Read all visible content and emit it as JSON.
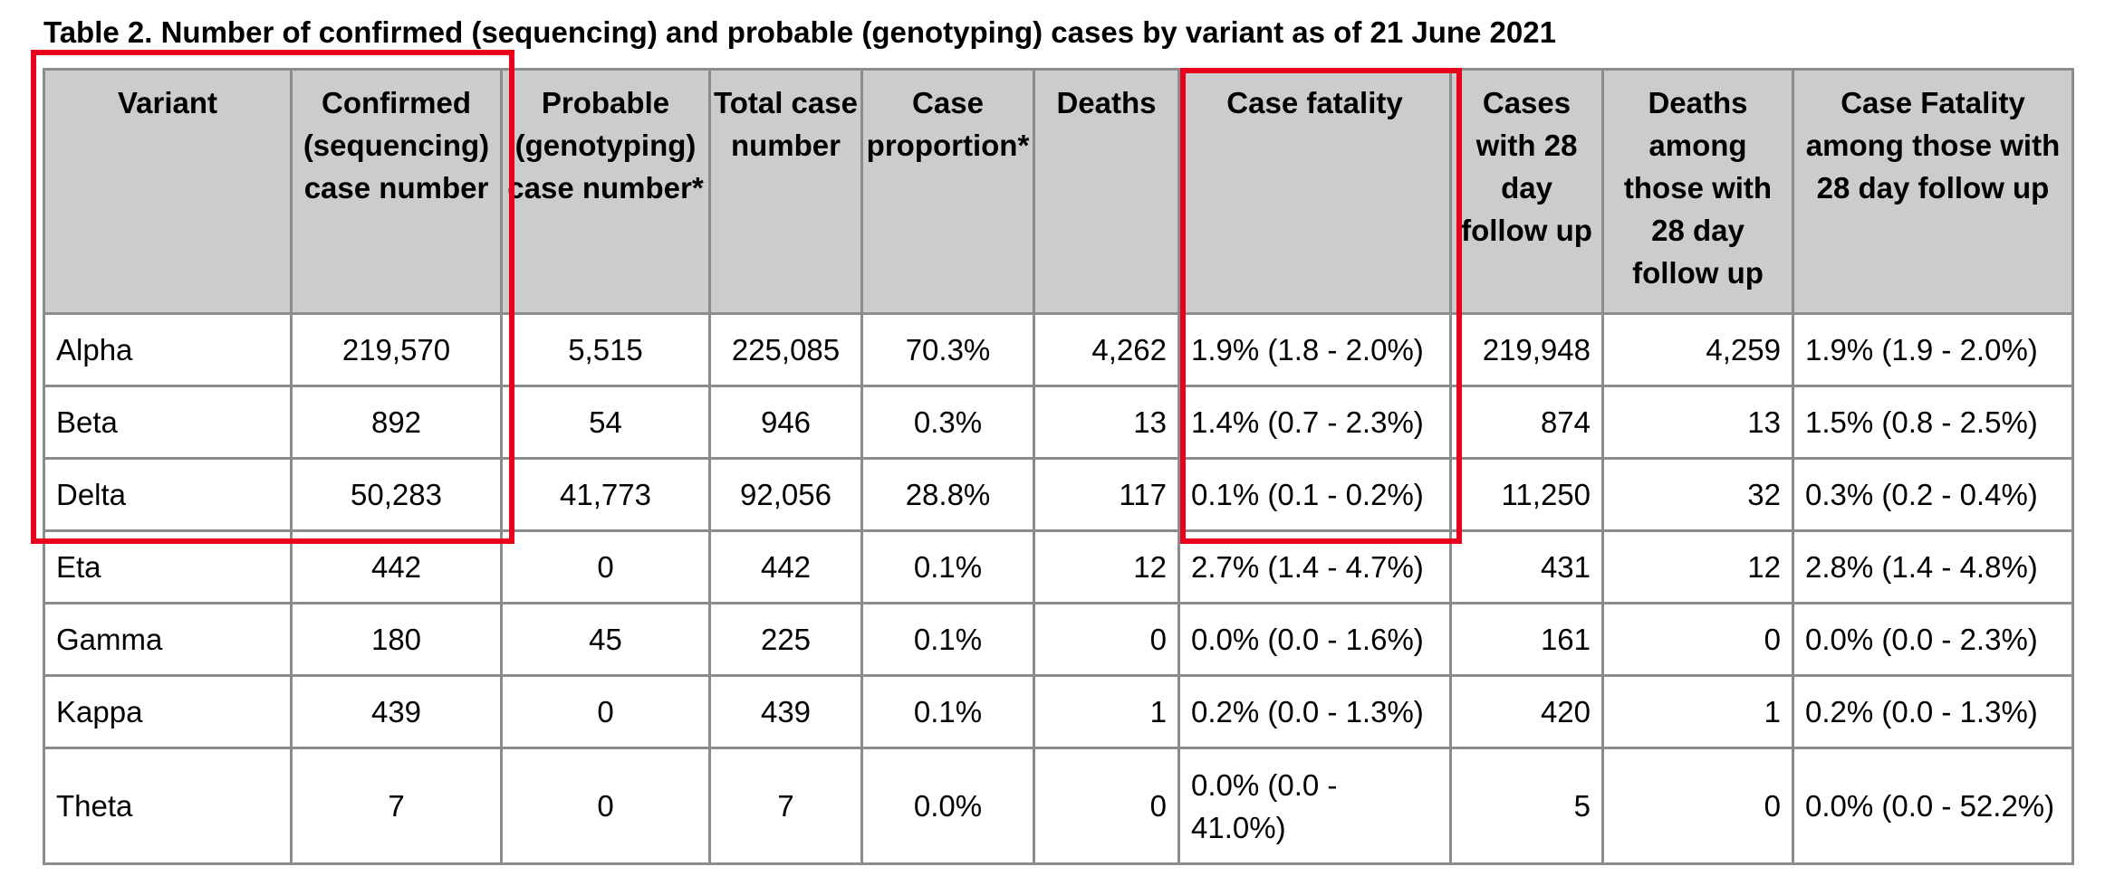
{
  "caption": "Table 2. Number of confirmed (sequencing) and probable (genotyping) cases by variant as of 21 June 2021",
  "headers": [
    "Variant",
    "Confirmed (sequencing) case number",
    "Probable (genotyping) case number*",
    "Total case number",
    "Case proportion*",
    "Deaths",
    "Case fatality",
    "Cases with 28 day follow up",
    "Deaths among those with 28 day follow up",
    "Case Fatality among those with 28 day follow up"
  ],
  "rows": [
    [
      "Alpha",
      "219,570",
      "5,515",
      "225,085",
      "70.3%",
      "4,262",
      "1.9% (1.8 - 2.0%)",
      "219,948",
      "4,259",
      "1.9% (1.9 - 2.0%)"
    ],
    [
      "Beta",
      "892",
      "54",
      "946",
      "0.3%",
      "13",
      "1.4% (0.7 - 2.3%)",
      "874",
      "13",
      "1.5% (0.8 - 2.5%)"
    ],
    [
      "Delta",
      "50,283",
      "41,773",
      "92,056",
      "28.8%",
      "117",
      "0.1% (0.1 - 0.2%)",
      "11,250",
      "32",
      "0.3% (0.2 - 0.4%)"
    ],
    [
      "Eta",
      "442",
      "0",
      "442",
      "0.1%",
      "12",
      "2.7% (1.4 - 4.7%)",
      "431",
      "12",
      "2.8% (1.4 - 4.8%)"
    ],
    [
      "Gamma",
      "180",
      "45",
      "225",
      "0.1%",
      "0",
      "0.0% (0.0 - 1.6%)",
      "161",
      "0",
      "0.0% (0.0 - 2.3%)"
    ],
    [
      "Kappa",
      "439",
      "0",
      "439",
      "0.1%",
      "1",
      "0.2% (0.0 - 1.3%)",
      "420",
      "1",
      "0.2% (0.0 - 1.3%)"
    ],
    [
      "Theta",
      "7",
      "0",
      "7",
      "0.0%",
      "0",
      "0.0% (0.0 - 41.0%)",
      "5",
      "0",
      "0.0% (0.0 - 52.2%)"
    ]
  ],
  "colors": {
    "header_background": "#cccccc",
    "grid": "#8c8c8c",
    "highlight": "#e8001c"
  }
}
